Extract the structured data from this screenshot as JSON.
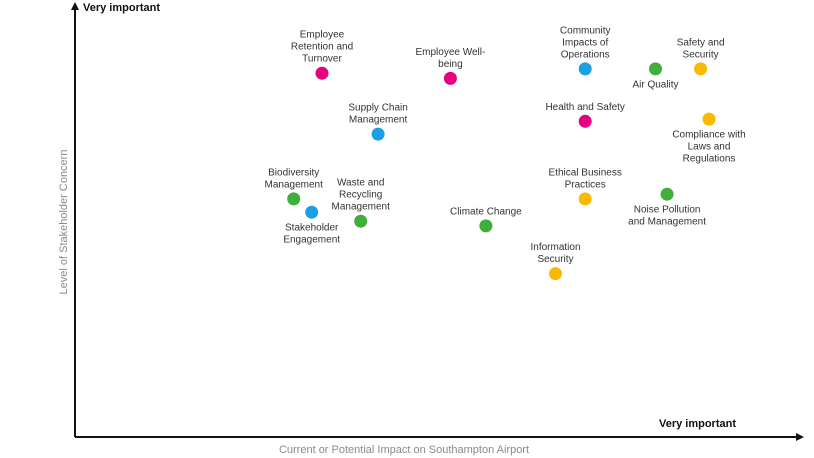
{
  "chart_data": {
    "type": "scatter",
    "xlabel": "Current or Potential Impact on Southampton Airport",
    "ylabel": "Level of Stakeholder Concern",
    "x_end_label": "Very important",
    "y_end_label": "Very important",
    "xlim": [
      0,
      100
    ],
    "ylim": [
      0,
      100
    ],
    "grid": false,
    "legend": "none",
    "colors": {
      "pink": "#e5007e",
      "blue": "#1a9fe0",
      "green": "#3fae3a",
      "yellow": "#fbb800"
    },
    "points": [
      {
        "label": "Employee Retention and Turnover",
        "lines": [
          "Employee",
          "Retention and",
          "Turnover"
        ],
        "x": 38.3,
        "y": 84.8,
        "color": "pink",
        "label_pos": "above"
      },
      {
        "label": "Employee Well-being",
        "lines": [
          "Employee Well-",
          "being"
        ],
        "x": 58.2,
        "y": 83.6,
        "color": "pink",
        "label_pos": "above"
      },
      {
        "label": "Community Impacts of Operations",
        "lines": [
          "Community",
          "Impacts of",
          "Operations"
        ],
        "x": 79.1,
        "y": 85.8,
        "color": "blue",
        "label_pos": "above"
      },
      {
        "label": "Air Quality",
        "lines": [
          "Air Quality"
        ],
        "x": 90.0,
        "y": 85.8,
        "color": "green",
        "label_pos": "below"
      },
      {
        "label": "Safety and Security",
        "lines": [
          "Safety and",
          "Security"
        ],
        "x": 97.0,
        "y": 85.8,
        "color": "yellow",
        "label_pos": "above"
      },
      {
        "label": "Supply Chain Management",
        "lines": [
          "Supply Chain",
          "Management"
        ],
        "x": 47.0,
        "y": 70.6,
        "color": "blue",
        "label_pos": "above"
      },
      {
        "label": "Health and Safety",
        "lines": [
          "Health and Safety"
        ],
        "x": 79.1,
        "y": 73.6,
        "color": "pink",
        "label_pos": "above"
      },
      {
        "label": "Compliance with Laws and Regulations",
        "lines": [
          "Compliance with",
          "Laws and",
          "Regulations"
        ],
        "x": 98.3,
        "y": 74.1,
        "color": "yellow",
        "label_pos": "below"
      },
      {
        "label": "Biodiversity Management",
        "lines": [
          "Biodiversity",
          "Management"
        ],
        "x": 33.9,
        "y": 55.5,
        "color": "green",
        "label_pos": "above"
      },
      {
        "label": "Stakeholder Engagement",
        "lines": [
          "Stakeholder",
          "Engagement"
        ],
        "x": 36.7,
        "y": 52.4,
        "color": "blue",
        "label_pos": "below"
      },
      {
        "label": "Waste and Recycling Management",
        "lines": [
          "Waste and",
          "Recycling",
          "Management"
        ],
        "x": 44.3,
        "y": 50.3,
        "color": "green",
        "label_pos": "above"
      },
      {
        "label": "Ethical Business Practices",
        "lines": [
          "Ethical Business",
          "Practices"
        ],
        "x": 79.1,
        "y": 55.5,
        "color": "yellow",
        "label_pos": "above"
      },
      {
        "label": "Noise Pollution and Management",
        "lines": [
          "Noise Pollution",
          "and Management"
        ],
        "x": 91.8,
        "y": 56.6,
        "color": "green",
        "label_pos": "below"
      },
      {
        "label": "Climate Change",
        "lines": [
          "Climate Change"
        ],
        "x": 63.7,
        "y": 49.2,
        "color": "green",
        "label_pos": "above"
      },
      {
        "label": "Information Security",
        "lines": [
          "Information",
          "Security"
        ],
        "x": 74.5,
        "y": 38.1,
        "color": "yellow",
        "label_pos": "above"
      }
    ]
  }
}
